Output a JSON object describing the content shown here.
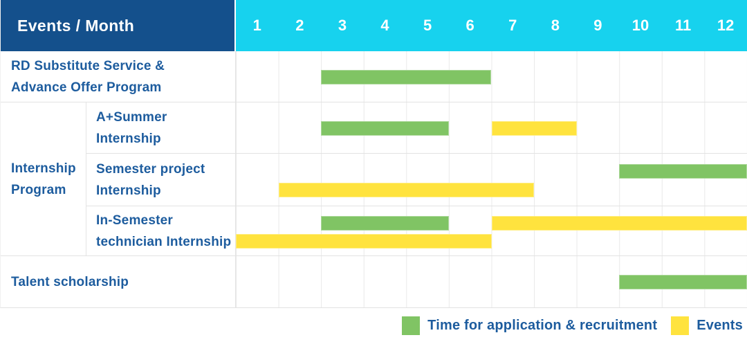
{
  "palette": {
    "header_bg": "#14508c",
    "months_bg": "#17d2ee",
    "green": "#80c464",
    "yellow": "#ffe33e",
    "label_text": "#1d5c9e",
    "grid_line": "#e4e4e4"
  },
  "header": {
    "title": "Events / Month",
    "months": [
      "1",
      "2",
      "3",
      "4",
      "5",
      "6",
      "7",
      "8",
      "9",
      "10",
      "11",
      "12"
    ]
  },
  "rows": [
    {
      "label_lines": [
        "RD Substitute Service &",
        "Advance Offer Program"
      ],
      "bars": [
        {
          "color": "green",
          "track": "center",
          "start": 3,
          "end": 6
        }
      ]
    },
    {
      "group_label_lines": [
        "Internship",
        "Program"
      ],
      "children": [
        {
          "label_lines": [
            "A+Summer",
            "Internship"
          ],
          "bars": [
            {
              "color": "green",
              "track": "center",
              "start": 3,
              "end": 5
            },
            {
              "color": "yellow",
              "track": "center",
              "start": 7,
              "end": 8
            }
          ]
        },
        {
          "label_lines": [
            "Semester project",
            "Internship"
          ],
          "bars": [
            {
              "color": "green",
              "track": "top",
              "start": 10,
              "end": 12
            },
            {
              "color": "yellow",
              "track": "bottom",
              "start": 2,
              "end": 7
            }
          ]
        },
        {
          "label_lines": [
            "In-Semester",
            "technician Internship"
          ],
          "bars": [
            {
              "color": "green",
              "track": "top",
              "start": 3,
              "end": 5
            },
            {
              "color": "yellow",
              "track": "top",
              "start": 7,
              "end": 12
            },
            {
              "color": "yellow",
              "track": "bottom",
              "start": 1,
              "end": 6
            }
          ]
        }
      ]
    },
    {
      "label_lines": [
        "Talent scholarship"
      ],
      "bars": [
        {
          "color": "green",
          "track": "center",
          "start": 10,
          "end": 12
        }
      ]
    }
  ],
  "legend": [
    {
      "color": "green",
      "label": "Time for application & recruitment"
    },
    {
      "color": "yellow",
      "label": "Events"
    }
  ],
  "chart_data": {
    "type": "gantt",
    "x_unit": "month",
    "x_range": [
      1,
      12
    ],
    "title": "Events / Month",
    "legend": {
      "green": "Time for application & recruitment",
      "yellow": "Events"
    },
    "tasks": [
      {
        "row": "RD Substitute Service & Advance Offer Program",
        "bars": [
          {
            "category": "Time for application & recruitment",
            "start_month": 3,
            "end_month": 6
          }
        ]
      },
      {
        "row": "Internship Program - A+Summer Internship",
        "bars": [
          {
            "category": "Time for application & recruitment",
            "start_month": 3,
            "end_month": 5
          },
          {
            "category": "Events",
            "start_month": 7,
            "end_month": 8
          }
        ]
      },
      {
        "row": "Internship Program - Semester project Internship",
        "bars": [
          {
            "category": "Time for application & recruitment",
            "start_month": 10,
            "end_month": 12
          },
          {
            "category": "Events",
            "start_month": 2,
            "end_month": 7
          }
        ]
      },
      {
        "row": "Internship Program - In-Semester technician Internship",
        "bars": [
          {
            "category": "Time for application & recruitment",
            "start_month": 3,
            "end_month": 5
          },
          {
            "category": "Events",
            "start_month": 7,
            "end_month": 12
          },
          {
            "category": "Events",
            "start_month": 1,
            "end_month": 6
          }
        ]
      },
      {
        "row": "Talent scholarship",
        "bars": [
          {
            "category": "Time for application & recruitment",
            "start_month": 10,
            "end_month": 12
          }
        ]
      }
    ]
  }
}
